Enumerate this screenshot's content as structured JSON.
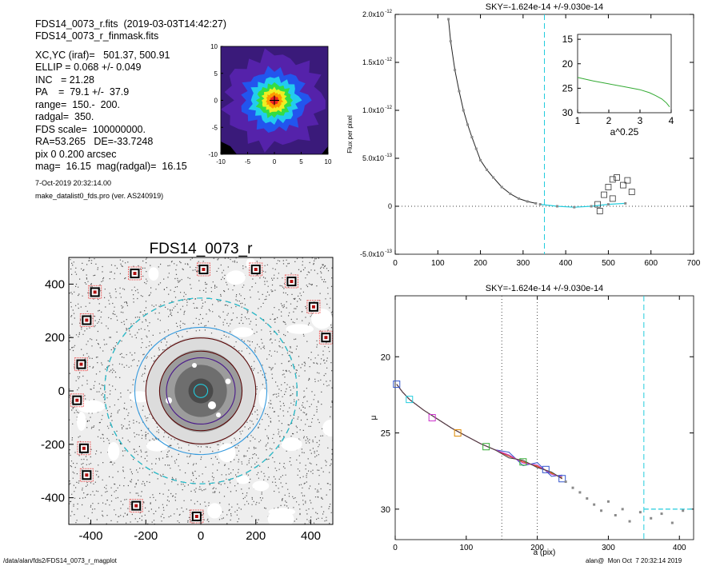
{
  "header": {
    "file_line": "FDS14_0073_r.fits  (2019-03-03T14:42:27)",
    "mask_line": "FDS14_0073_r_finmask.fits",
    "params": [
      "XC,YC (iraf)=   501.37, 500.91",
      "ELLIP = 0.068 +/- 0.049",
      "INC   = 21.28",
      "PA    =  79.1 +/-  37.9",
      "range=  150.-  200.",
      "radgal=  350.",
      "FDS scale=  100000000.",
      "RA=53.265   DE=-33.7248",
      "pix 0 0.200 arcsec",
      "mag=  16.15  mag(radgal)=  16.15"
    ],
    "date": "7-Oct-2019 20:32:14.00",
    "program": "make_datalist0_fds.pro (ver. AS240919)"
  },
  "footer": {
    "path": "/data/alan/fds2/FDS14_0073_r_magplot",
    "stamp": "alan@  Mon Oct  7 20:32:14 2019"
  },
  "colors": {
    "cyan": "#22ccdd",
    "gray": "#8a8a8a",
    "dark": "#222222",
    "green": "#33aa33",
    "red": "#dd2222",
    "blue": "#3355cc",
    "magenta": "#cc33cc",
    "orange": "#dd8800",
    "maroon": "#5a0a0a",
    "purple": "#4a1a8a"
  },
  "chart_data": [
    {
      "id": "thumbnail",
      "type": "heatmap",
      "xlim": [
        -10,
        10
      ],
      "ylim": [
        -10,
        10
      ],
      "xticks": [
        "-10",
        "-5",
        "0",
        "5",
        "10"
      ],
      "yticks": [
        "-10",
        "-5",
        "0",
        "5",
        "10"
      ],
      "levels": [
        {
          "r": 9.0,
          "color": "#5522aa"
        },
        {
          "r": 6.0,
          "color": "#2255ee"
        },
        {
          "r": 4.4,
          "color": "#22ccee"
        },
        {
          "r": 3.2,
          "color": "#33dd44"
        },
        {
          "r": 2.3,
          "color": "#eeee22"
        },
        {
          "r": 1.5,
          "color": "#ff9900"
        },
        {
          "r": 0.8,
          "color": "#ee2222"
        }
      ]
    },
    {
      "id": "image",
      "type": "scatter",
      "title": "FDS14_0073_r",
      "xlim": [
        -480,
        480
      ],
      "ylim": [
        -500,
        500
      ],
      "xticks": [
        -400,
        -200,
        0,
        200,
        400
      ],
      "yticks": [
        -400,
        -200,
        0,
        200,
        400
      ],
      "xticklabels": [
        "-400",
        "-200",
        "0",
        "200",
        "400"
      ],
      "yticklabels": [
        "-400",
        "-200",
        "0",
        "200",
        "400"
      ],
      "stars": [
        {
          "x": -385,
          "y": 370
        },
        {
          "x": -415,
          "y": 265
        },
        {
          "x": -435,
          "y": 100
        },
        {
          "x": -450,
          "y": -35
        },
        {
          "x": -425,
          "y": -215
        },
        {
          "x": -415,
          "y": -315
        },
        {
          "x": -240,
          "y": 440
        },
        {
          "x": 10,
          "y": 455
        },
        {
          "x": 200,
          "y": 455
        },
        {
          "x": 330,
          "y": 410
        },
        {
          "x": 410,
          "y": 315
        },
        {
          "x": 455,
          "y": 200
        },
        {
          "x": -235,
          "y": -430
        },
        {
          "x": -15,
          "y": -470
        }
      ],
      "ellipses": [
        {
          "a": 350,
          "color": "#000000",
          "dash": true
        },
        {
          "a": 350,
          "color": "#22ccdd",
          "dash": true
        },
        {
          "a": 240,
          "color": "#3399dd",
          "dash": false
        },
        {
          "a": 200,
          "color": "#5a0a0a",
          "dash": false
        },
        {
          "a": 150,
          "color": "#5a0a0a",
          "dash": false
        },
        {
          "a": 125,
          "color": "#4a1a8a",
          "dash": false
        },
        {
          "a": 25,
          "color": "#22ccdd",
          "dash": false
        }
      ]
    },
    {
      "id": "flux",
      "type": "line",
      "title": "SKY=-1.624e-14 +/-9.030e-14",
      "xlabel": "",
      "ylabel": "Flux per pixel",
      "xlim": [
        0,
        700
      ],
      "ylim": [
        -5e-13,
        2e-12
      ],
      "xticks": [
        "0",
        "100",
        "200",
        "300",
        "400",
        "500",
        "600",
        "700"
      ],
      "yticks": [
        {
          "v": -5e-13,
          "label": "-5.0x10",
          "exp": "-13"
        },
        {
          "v": 0,
          "label": "0",
          "exp": ""
        },
        {
          "v": 5e-13,
          "label": "5.0x10",
          "exp": "-13"
        },
        {
          "v": 1e-12,
          "label": "1.0x10",
          "exp": "-12"
        },
        {
          "v": 1.5e-12,
          "label": "1.5x10",
          "exp": "-12"
        },
        {
          "v": 2e-12,
          "label": "2.0x10",
          "exp": "-12"
        }
      ],
      "vline": 350,
      "profile": [
        {
          "x": 125,
          "y": 1.95e-12
        },
        {
          "x": 130,
          "y": 1.72e-12
        },
        {
          "x": 140,
          "y": 1.42e-12
        },
        {
          "x": 150,
          "y": 1.2e-12
        },
        {
          "x": 160,
          "y": 1e-12
        },
        {
          "x": 170,
          "y": 8.5e-13
        },
        {
          "x": 180,
          "y": 7.2e-13
        },
        {
          "x": 190,
          "y": 6e-13
        },
        {
          "x": 200,
          "y": 4.8e-13
        },
        {
          "x": 215,
          "y": 3.8e-13
        },
        {
          "x": 230,
          "y": 3e-13
        },
        {
          "x": 250,
          "y": 2e-13
        },
        {
          "x": 270,
          "y": 1.3e-13
        },
        {
          "x": 290,
          "y": 8e-14
        },
        {
          "x": 310,
          "y": 5e-14
        },
        {
          "x": 330,
          "y": 3e-14
        }
      ],
      "outer_points": [
        {
          "x": 340,
          "y": 2e-14
        },
        {
          "x": 380,
          "y": 0.0
        },
        {
          "x": 420,
          "y": -1e-14
        },
        {
          "x": 460,
          "y": 0.0
        },
        {
          "x": 500,
          "y": 2e-14
        },
        {
          "x": 540,
          "y": 3e-14
        }
      ],
      "squares": [
        {
          "x": 475,
          "y": 2e-14
        },
        {
          "x": 480,
          "y": -5e-14
        },
        {
          "x": 490,
          "y": 1.2e-13
        },
        {
          "x": 500,
          "y": 2e-13
        },
        {
          "x": 510,
          "y": 2.8e-13
        },
        {
          "x": 520,
          "y": 3e-13
        },
        {
          "x": 535,
          "y": 2.2e-13
        },
        {
          "x": 545,
          "y": 2.7e-13
        },
        {
          "x": 555,
          "y": 1.5e-13
        },
        {
          "x": 510,
          "y": 8e-14
        }
      ],
      "inset": {
        "xlabel": "a^0.25",
        "xlim": [
          1,
          4
        ],
        "ylim": [
          30,
          14
        ],
        "xticks": [
          "1",
          "2",
          "3",
          "4"
        ],
        "yticks": [
          "15",
          "20",
          "25",
          "30"
        ],
        "curve": [
          {
            "x": 1.0,
            "y": 22.8
          },
          {
            "x": 1.5,
            "y": 23.5
          },
          {
            "x": 2.0,
            "y": 24.1
          },
          {
            "x": 2.5,
            "y": 24.7
          },
          {
            "x": 3.0,
            "y": 25.3
          },
          {
            "x": 3.3,
            "y": 25.9
          },
          {
            "x": 3.5,
            "y": 26.5
          },
          {
            "x": 3.7,
            "y": 27.2
          },
          {
            "x": 3.85,
            "y": 28.0
          },
          {
            "x": 3.95,
            "y": 28.8
          }
        ]
      }
    },
    {
      "id": "mu",
      "type": "line",
      "title": "SKY=-1.624e-14 +/-9.030e-14",
      "xlabel": "a (pix)",
      "ylabel": "μ",
      "xlim": [
        0,
        420
      ],
      "ylim": [
        32,
        16
      ],
      "xticks": [
        "0",
        "100",
        "200",
        "300",
        "400"
      ],
      "yticks": [
        "20",
        "25",
        "30"
      ],
      "vlines_dotted": [
        150,
        200
      ],
      "vline_dashed": 350,
      "sky_level": 30.0,
      "profile": [
        {
          "x": 2,
          "y": 21.8
        },
        {
          "x": 10,
          "y": 22.3
        },
        {
          "x": 20,
          "y": 22.8
        },
        {
          "x": 40,
          "y": 23.5
        },
        {
          "x": 60,
          "y": 24.1
        },
        {
          "x": 80,
          "y": 24.7
        },
        {
          "x": 100,
          "y": 25.2
        },
        {
          "x": 120,
          "y": 25.7
        },
        {
          "x": 140,
          "y": 26.1
        },
        {
          "x": 160,
          "y": 26.5
        },
        {
          "x": 180,
          "y": 26.9
        },
        {
          "x": 200,
          "y": 27.2
        },
        {
          "x": 220,
          "y": 27.6
        },
        {
          "x": 235,
          "y": 28.0
        }
      ],
      "squares": [
        {
          "x": 2,
          "y": 21.8
        },
        {
          "x": 20,
          "y": 22.8
        },
        {
          "x": 52,
          "y": 24.0
        },
        {
          "x": 88,
          "y": 25.0
        },
        {
          "x": 128,
          "y": 25.9
        },
        {
          "x": 180,
          "y": 26.9
        },
        {
          "x": 212,
          "y": 27.4
        },
        {
          "x": 235,
          "y": 28.0
        }
      ],
      "tail_points": [
        {
          "x": 240,
          "y": 28.2
        },
        {
          "x": 250,
          "y": 28.6
        },
        {
          "x": 260,
          "y": 28.9
        },
        {
          "x": 270,
          "y": 29.3
        },
        {
          "x": 280,
          "y": 29.7
        },
        {
          "x": 290,
          "y": 30.1
        },
        {
          "x": 300,
          "y": 29.5
        },
        {
          "x": 310,
          "y": 30.4
        },
        {
          "x": 320,
          "y": 30.0
        },
        {
          "x": 330,
          "y": 30.8
        },
        {
          "x": 345,
          "y": 30.2
        },
        {
          "x": 360,
          "y": 30.6
        },
        {
          "x": 375,
          "y": 30.3
        },
        {
          "x": 390,
          "y": 30.9
        },
        {
          "x": 405,
          "y": 30.1
        }
      ]
    }
  ]
}
